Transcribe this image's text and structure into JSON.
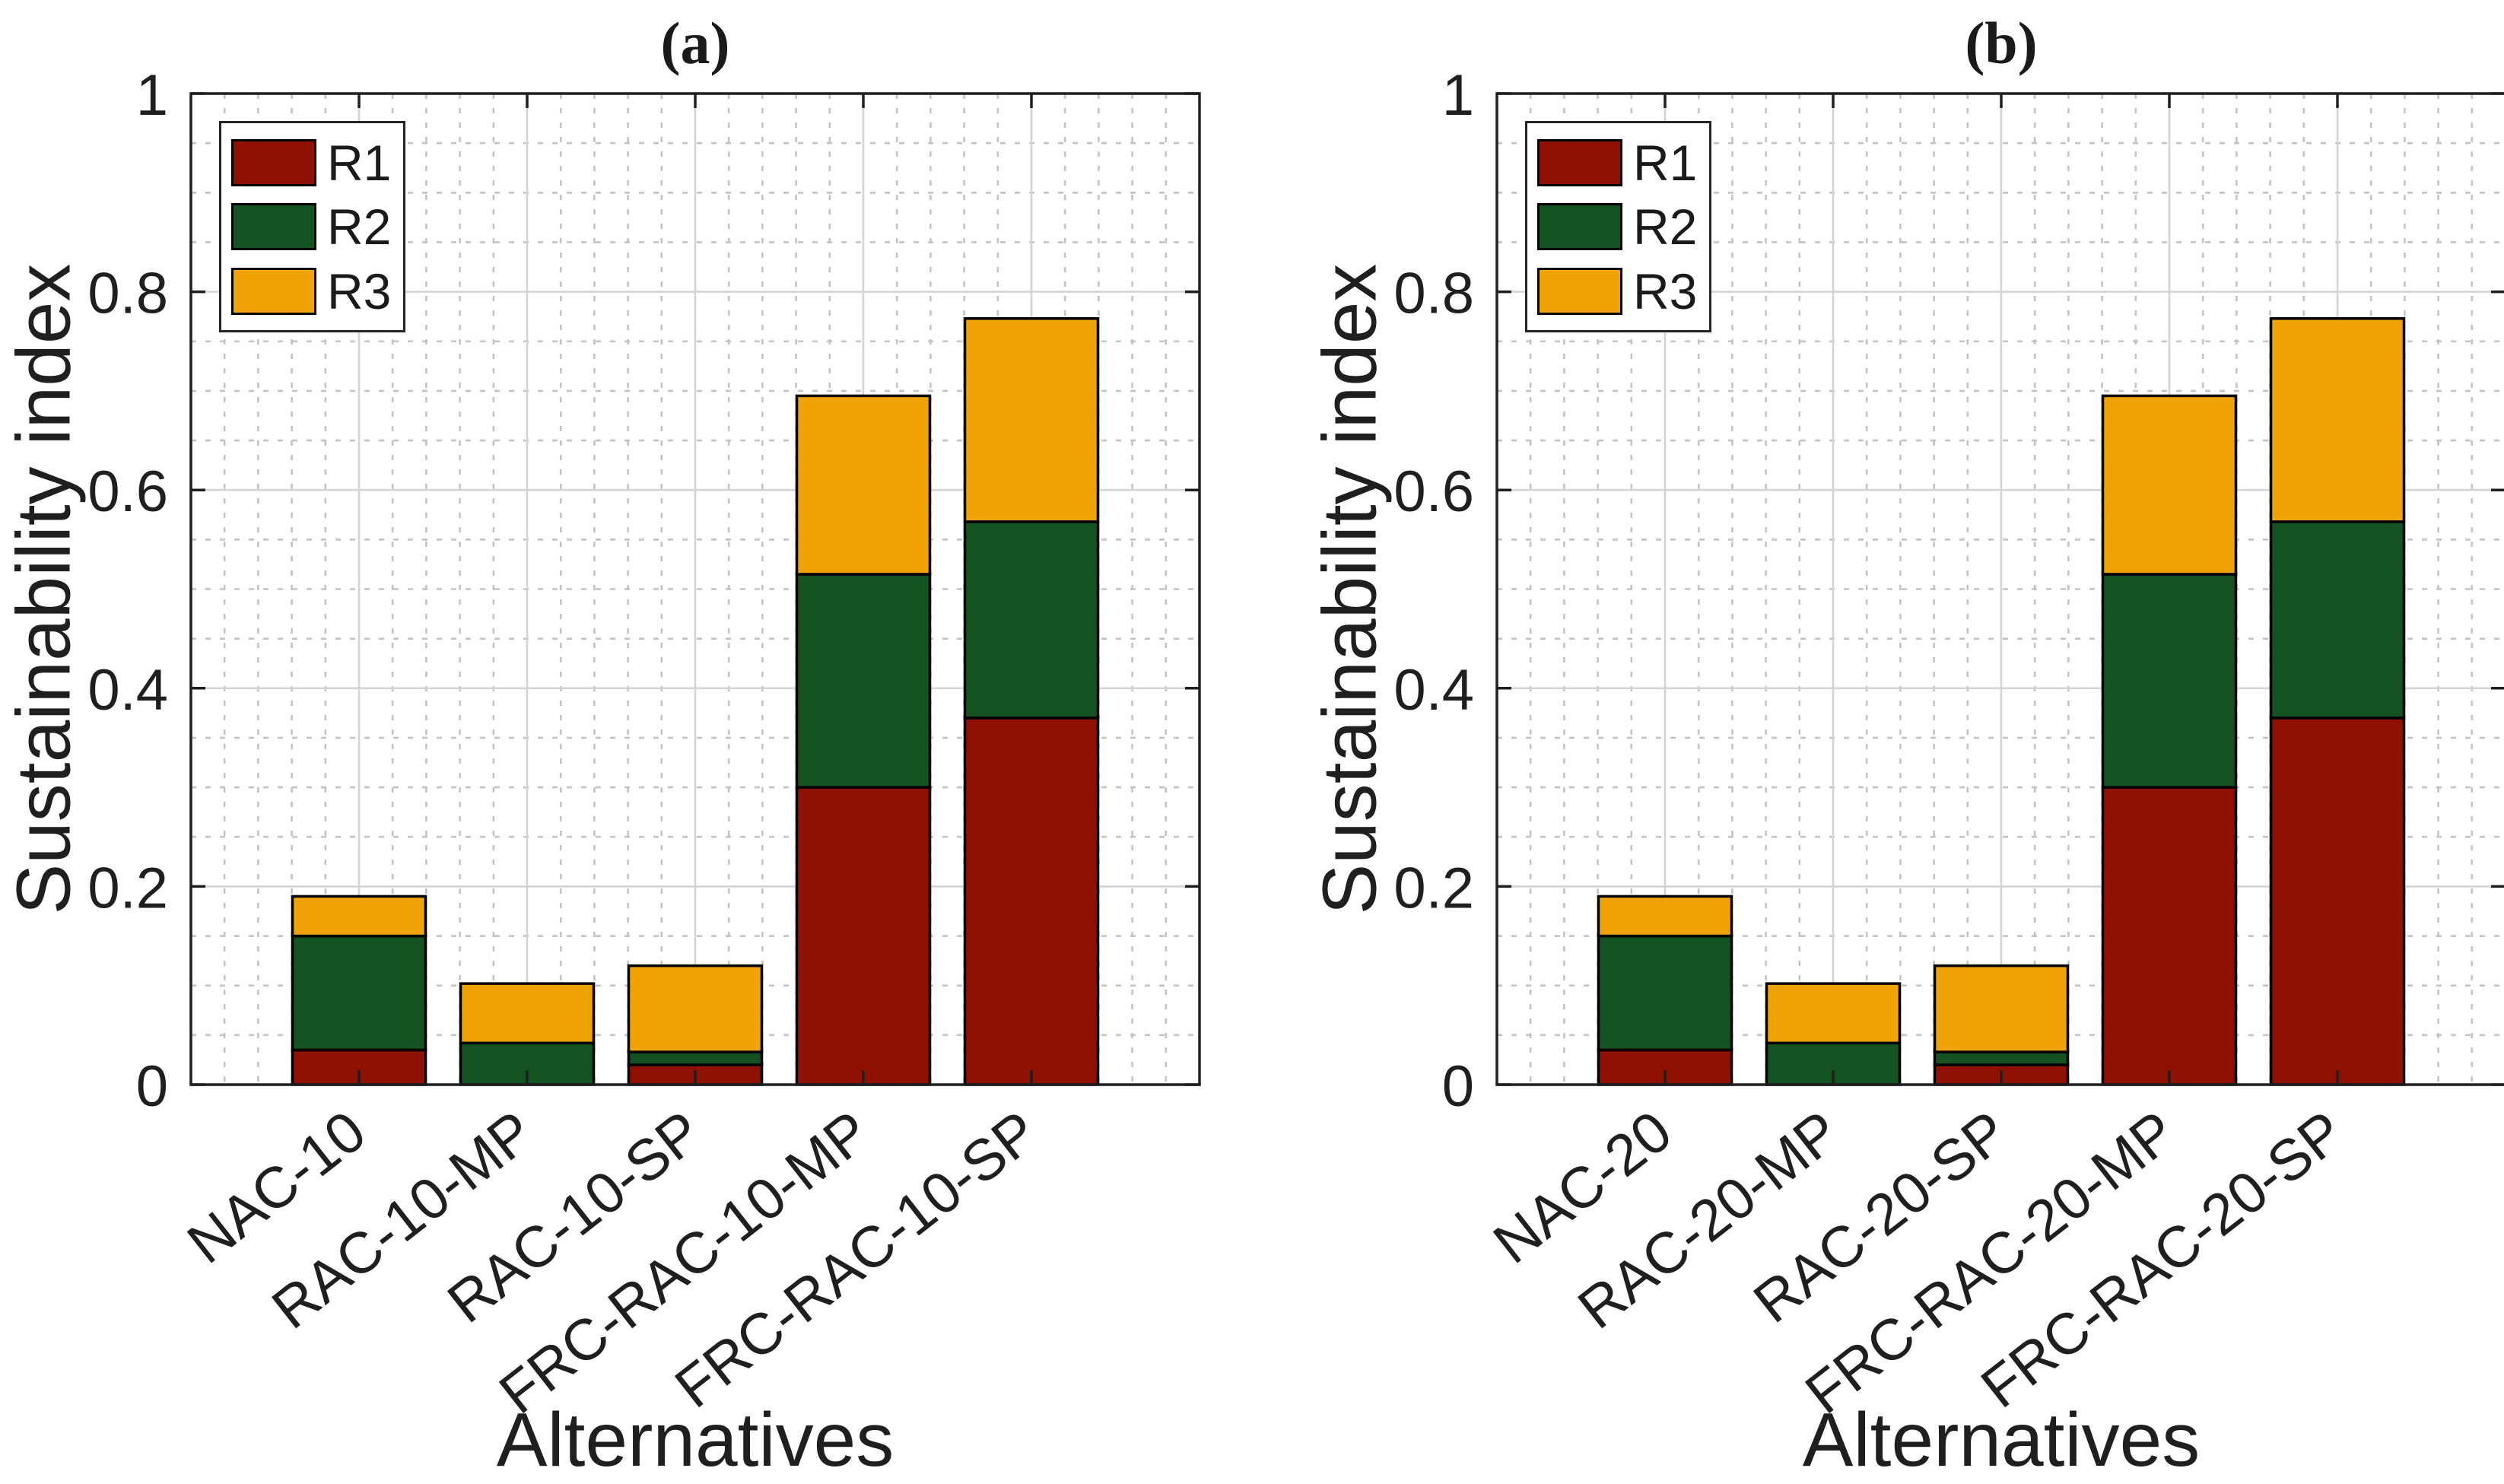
{
  "figure": {
    "background": "#ffffff",
    "text_color": "#1f1f1f"
  },
  "chart_data": [
    {
      "type": "bar",
      "stacked": true,
      "title": "(a)",
      "xlabel": "Alternatives",
      "ylabel": "Sustainability index",
      "ylim": [
        0,
        1
      ],
      "xlim": [
        0,
        6
      ],
      "grid": "major solid + minor dotted",
      "legend_position": "top-left",
      "bar_width": 0.8,
      "yticks": [
        0,
        0.2,
        0.4,
        0.6,
        0.8,
        1
      ],
      "ytick_labels": [
        "0",
        "0.2",
        "0.4",
        "0.6",
        "0.8",
        "1"
      ],
      "y_minor_step": 0.05,
      "x_minor_step": 0.2,
      "categories": [
        "NAC-10",
        "RAC-10-MP",
        "RAC-10-SP",
        "FRC-RAC-10-MP",
        "FRC-RAC-10-SP"
      ],
      "series": [
        {
          "name": "R1",
          "color": "#8e1104",
          "values": [
            0.035,
            0.0,
            0.02,
            0.3,
            0.37
          ]
        },
        {
          "name": "R2",
          "color": "#155221",
          "values": [
            0.115,
            0.042,
            0.013,
            0.215,
            0.198
          ]
        },
        {
          "name": "R3",
          "color": "#f0a307",
          "values": [
            0.04,
            0.06,
            0.087,
            0.18,
            0.205
          ]
        }
      ],
      "stack_totals": [
        0.19,
        0.102,
        0.12,
        0.695,
        0.773
      ]
    },
    {
      "type": "bar",
      "stacked": true,
      "title": "(b)",
      "xlabel": "Alternatives",
      "ylabel": "Sustainability index",
      "ylim": [
        0,
        1
      ],
      "xlim": [
        0,
        6
      ],
      "grid": "major solid + minor dotted",
      "legend_position": "top-left",
      "bar_width": 0.8,
      "yticks": [
        0,
        0.2,
        0.4,
        0.6,
        0.8,
        1
      ],
      "ytick_labels": [
        "0",
        "0.2",
        "0.4",
        "0.6",
        "0.8",
        "1"
      ],
      "y_minor_step": 0.05,
      "x_minor_step": 0.2,
      "categories": [
        "NAC-20",
        "RAC-20-MP",
        "RAC-20-SP",
        "FRC-RAC-20-MP",
        "FRC-RAC-20-SP"
      ],
      "series": [
        {
          "name": "R1",
          "color": "#8e1104",
          "values": [
            0.035,
            0.0,
            0.02,
            0.3,
            0.37
          ]
        },
        {
          "name": "R2",
          "color": "#155221",
          "values": [
            0.115,
            0.042,
            0.013,
            0.215,
            0.198
          ]
        },
        {
          "name": "R3",
          "color": "#f0a307",
          "values": [
            0.04,
            0.06,
            0.087,
            0.18,
            0.205
          ]
        }
      ],
      "stack_totals": [
        0.19,
        0.102,
        0.12,
        0.695,
        0.773
      ]
    }
  ]
}
